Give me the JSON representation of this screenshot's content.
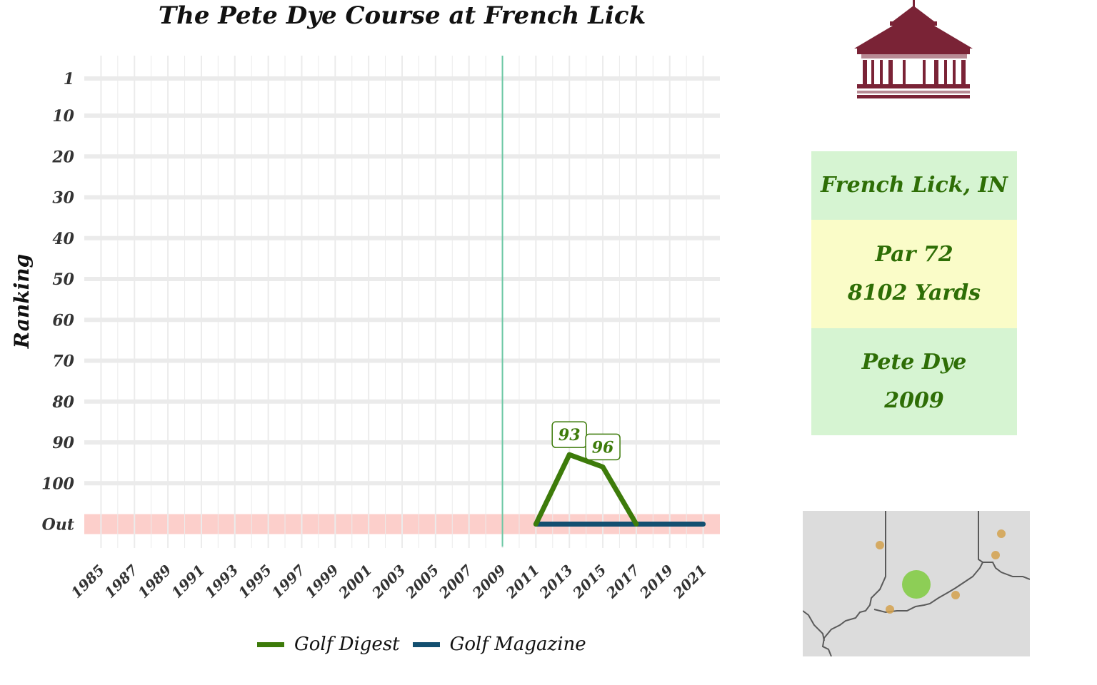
{
  "chart_data": {
    "type": "line",
    "title": "The Pete Dye Course at French Lick",
    "ylabel": "Ranking",
    "xlabel": "",
    "x_ticks": [
      1985,
      1987,
      1989,
      1991,
      1993,
      1995,
      1997,
      1999,
      2001,
      2003,
      2005,
      2007,
      2009,
      2011,
      2013,
      2015,
      2017,
      2019,
      2021
    ],
    "x_range": [
      1984,
      2022
    ],
    "y_tick_labels": [
      "1",
      "10",
      "20",
      "30",
      "40",
      "50",
      "60",
      "70",
      "80",
      "90",
      "100",
      "Out"
    ],
    "y_tick_values": [
      1,
      10,
      20,
      30,
      40,
      50,
      60,
      70,
      80,
      90,
      100,
      110
    ],
    "y_reversed": true,
    "out_value": 110,
    "out_band_color": "#fccfcb",
    "reference_line": {
      "x": 2009,
      "color": "#6cc8a4"
    },
    "grid": true,
    "legend_position": "bottom",
    "series": [
      {
        "name": "Golf Digest",
        "color": "#3d7b0a",
        "points": [
          {
            "x": 2011,
            "y": 110
          },
          {
            "x": 2013,
            "y": 93
          },
          {
            "x": 2015,
            "y": 96
          },
          {
            "x": 2017,
            "y": 110
          }
        ]
      },
      {
        "name": "Golf Magazine",
        "color": "#134f70",
        "points": [
          {
            "x": 2011,
            "y": 110
          },
          {
            "x": 2021,
            "y": 110
          }
        ]
      }
    ],
    "data_labels": [
      {
        "x": 2013,
        "y": 93,
        "text": "93"
      },
      {
        "x": 2015,
        "y": 96,
        "text": "96"
      }
    ]
  },
  "info": {
    "location": "French Lick, IN",
    "par": "Par 72",
    "yards": "8102 Yards",
    "designer": "Pete Dye",
    "year": "2009",
    "colors": {
      "green_box": "#d6f4d2",
      "yellow_box": "#fafcc8",
      "text": "#2e6e06"
    }
  },
  "logo": {
    "icon": "clubhouse-icon",
    "color": "#7a2336"
  },
  "map": {
    "icon": "regional-map",
    "background": "#dcdcdc",
    "highlight_color": "#7fcb3e",
    "other_color": "#d4a24e"
  }
}
